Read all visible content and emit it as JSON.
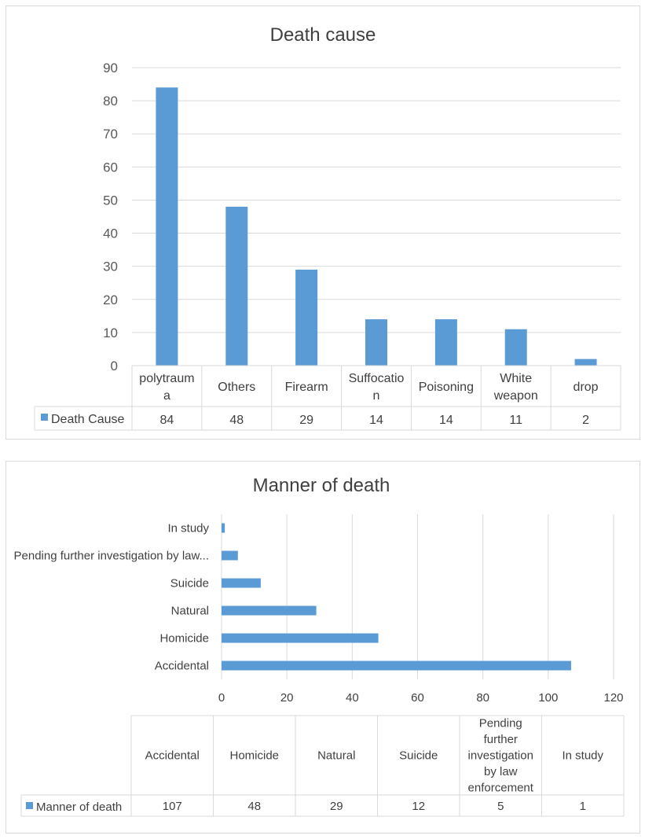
{
  "chart_data": [
    {
      "type": "bar",
      "title": "Death cause",
      "categories": [
        "polytrauma",
        "Others",
        "Firearm",
        "Suffocation",
        "Poisoning",
        "White weapon",
        "drop"
      ],
      "category_lines": [
        [
          "polytraum",
          "a"
        ],
        [
          "Others"
        ],
        [
          "Firearm"
        ],
        [
          "Suffocatio",
          "n"
        ],
        [
          "Poisoning"
        ],
        [
          "White",
          "weapon"
        ],
        [
          "drop"
        ]
      ],
      "series": [
        {
          "name": "Death Cause",
          "values": [
            84,
            48,
            29,
            14,
            14,
            11,
            2
          ]
        }
      ],
      "yticks": [
        "0",
        "10",
        "20",
        "30",
        "40",
        "50",
        "60",
        "70",
        "80",
        "90"
      ],
      "ylim": [
        0,
        90
      ],
      "grid": true,
      "legend": "data-table",
      "color": "#5b9bd5"
    },
    {
      "type": "bar",
      "orientation": "horizontal",
      "title": "Manner of death",
      "categories": [
        "Accidental",
        "Homicide",
        "Natural",
        "Suicide",
        "Pending further investigation by law enforcement",
        "In study"
      ],
      "axis_labels": [
        "Accidental",
        "Homicide",
        "Natural",
        "Suicide",
        "Pending further investigation by law...",
        "In study"
      ],
      "category_lines": [
        [
          "Accidental"
        ],
        [
          "Homicide"
        ],
        [
          "Natural"
        ],
        [
          "Suicide"
        ],
        [
          "Pending",
          "further",
          "investigation",
          "by law",
          "enforcement"
        ],
        [
          "In study"
        ]
      ],
      "series": [
        {
          "name": "Manner of death",
          "values": [
            107,
            48,
            29,
            12,
            5,
            1
          ]
        }
      ],
      "xticks": [
        "0",
        "20",
        "40",
        "60",
        "80",
        "100",
        "120"
      ],
      "xlim": [
        0,
        120
      ],
      "grid": true,
      "legend": "data-table",
      "color": "#5b9bd5"
    }
  ]
}
